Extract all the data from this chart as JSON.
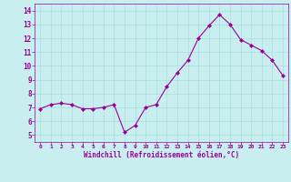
{
  "x": [
    0,
    1,
    2,
    3,
    4,
    5,
    6,
    7,
    8,
    9,
    10,
    11,
    12,
    13,
    14,
    15,
    16,
    17,
    18,
    19,
    20,
    21,
    22,
    23
  ],
  "y": [
    6.9,
    7.2,
    7.3,
    7.2,
    6.9,
    6.9,
    7.0,
    7.2,
    5.2,
    5.7,
    7.0,
    7.2,
    8.5,
    9.5,
    10.4,
    12.0,
    12.9,
    13.7,
    13.0,
    11.9,
    11.5,
    11.1,
    10.4,
    9.3
  ],
  "line_color": "#990099",
  "marker": "D",
  "marker_size": 2.0,
  "bg_color": "#c8eef0",
  "grid_color": "#aadddd",
  "xlabel": "Windchill (Refroidissement éolien,°C)",
  "xlabel_color": "#990099",
  "tick_color": "#990099",
  "ylim": [
    4.5,
    14.5
  ],
  "xlim": [
    -0.5,
    23.5
  ],
  "yticks": [
    5,
    6,
    7,
    8,
    9,
    10,
    11,
    12,
    13,
    14
  ],
  "xticks": [
    0,
    1,
    2,
    3,
    4,
    5,
    6,
    7,
    8,
    9,
    10,
    11,
    12,
    13,
    14,
    15,
    16,
    17,
    18,
    19,
    20,
    21,
    22,
    23
  ],
  "line_width": 0.8,
  "spine_color": "#990099"
}
